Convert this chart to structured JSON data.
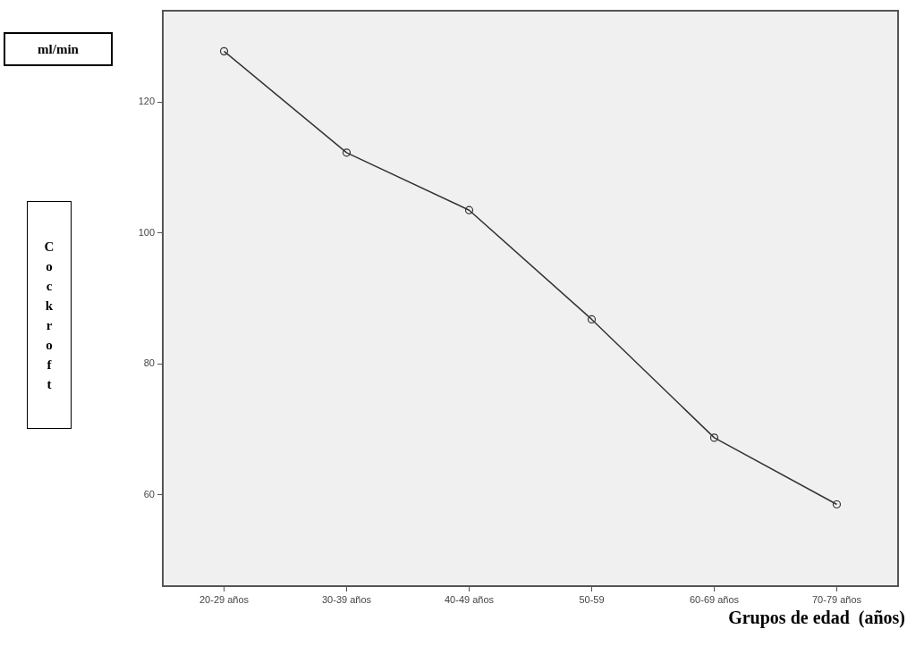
{
  "chart_data": {
    "type": "line",
    "categories": [
      "20-29 años",
      "30-39 años",
      "40-49 años",
      "50-59",
      "60-69 años",
      "70-79 años"
    ],
    "values": [
      127.8,
      112.3,
      103.5,
      86.8,
      68.7,
      58.5
    ],
    "color": "#333333",
    "marker": "circle",
    "line_style": "solid",
    "ylim": [
      46,
      134
    ],
    "yticks": [
      60,
      80,
      100,
      120
    ],
    "xlabel": "Grupos de edad  (años)",
    "annotations": [
      "ml/min",
      "Cockroft"
    ]
  }
}
